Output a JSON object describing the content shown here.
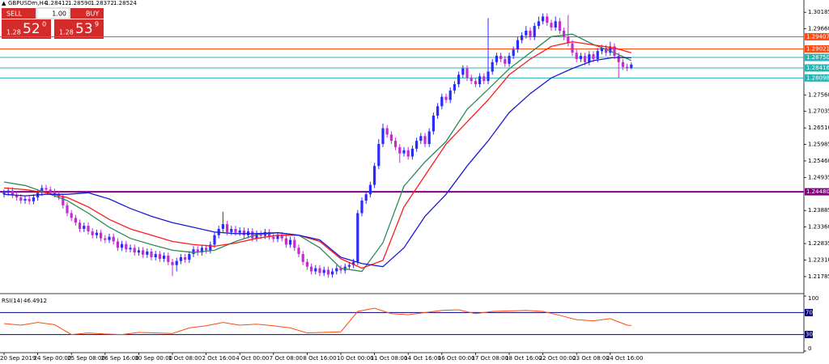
{
  "header": {
    "symbol": "GBPUSDm,H4",
    "ohlc_labels": [
      "1.28412",
      "1.28590",
      "1.28372",
      "1.28524"
    ]
  },
  "trade_panel": {
    "sell": "SELL",
    "buy": "BUY",
    "lot": "1.00",
    "sell_price": [
      "1.28",
      "52",
      "0"
    ],
    "buy_price": [
      "1.28",
      "53",
      "9"
    ]
  },
  "chart_data": {
    "type": "candlestick",
    "up_color": "#2b2bff",
    "down_color": "#c42bd0",
    "ylim": [
      1.2132,
      1.3037
    ],
    "yticks": [
      1.30185,
      {
        "value": 1.2966,
        "label": "1.29660"
      },
      {
        "value": 1.2756,
        "label": "1.27560"
      },
      1.27035,
      {
        "value": 1.2651,
        "label": "1.26510"
      },
      1.25985,
      {
        "value": 1.2546,
        "label": "1.25460"
      },
      1.24935,
      1.23885,
      {
        "value": 1.2336,
        "label": "1.23360"
      },
      1.22835,
      {
        "value": 1.2231,
        "label": "1.22310"
      },
      1.21785
    ],
    "x_labels": [
      {
        "index": 0,
        "label": "20 Sep 2019"
      },
      {
        "index": 8,
        "label": "24 Sep 00:00"
      },
      {
        "index": 16,
        "label": "25 Sep 08:00"
      },
      {
        "index": 24,
        "label": "26 Sep 16:00"
      },
      {
        "index": 32,
        "label": "30 Sep 00:00"
      },
      {
        "index": 40,
        "label": "1 Oct 08:00"
      },
      {
        "index": 48,
        "label": "2 Oct 16:00"
      },
      {
        "index": 56,
        "label": "4 Oct 00:00"
      },
      {
        "index": 64,
        "label": "7 Oct 08:00"
      },
      {
        "index": 72,
        "label": "8 Oct 16:00"
      },
      {
        "index": 80,
        "label": "10 Oct 00:00"
      },
      {
        "index": 88,
        "label": "11 Oct 08:00"
      },
      {
        "index": 96,
        "label": "14 Oct 16:00"
      },
      {
        "index": 104,
        "label": "16 Oct 00:00"
      },
      {
        "index": 112,
        "label": "17 Oct 08:00"
      },
      {
        "index": 120,
        "label": "18 Oct 16:00"
      },
      {
        "index": 128,
        "label": "22 Oct 00:00"
      },
      {
        "index": 136,
        "label": "23 Oct 08:00"
      },
      {
        "index": 144,
        "label": "24 Oct 16:00"
      }
    ],
    "open": [
      1.244,
      1.2445,
      1.2452,
      1.2438,
      1.243,
      1.242,
      1.2425,
      1.2418,
      1.243,
      1.2445,
      1.246,
      1.2455,
      1.2448,
      1.244,
      1.2432,
      1.2405,
      1.238,
      1.2365,
      1.235,
      1.233,
      1.234,
      1.2322,
      1.231,
      1.2318,
      1.23,
      1.2295,
      1.2305,
      1.229,
      1.227,
      1.2282,
      1.2265,
      1.227,
      1.2255,
      1.2262,
      1.2248,
      1.2258,
      1.224,
      1.225,
      1.2235,
      1.2245,
      1.2225,
      1.2215,
      1.2228,
      1.224,
      1.2232,
      1.225,
      1.2265,
      1.2255,
      1.227,
      1.2262,
      1.228,
      1.231,
      1.233,
      1.2345,
      1.232,
      1.233,
      1.2318,
      1.2325,
      1.231,
      1.2322,
      1.23,
      1.2315,
      1.2308,
      1.232,
      1.2305,
      1.2298,
      1.231,
      1.23,
      1.228,
      1.2295,
      1.227,
      1.225,
      1.2225,
      1.221,
      1.2195,
      1.2205,
      1.219,
      1.22,
      1.2185,
      1.2195,
      1.2205,
      1.2198,
      1.221,
      1.2215,
      1.2225,
      1.238,
      1.242,
      1.244,
      1.247,
      1.253,
      1.26,
      1.265,
      1.263,
      1.261,
      1.259,
      1.257,
      1.258,
      1.256,
      1.2585,
      1.261,
      1.2625,
      1.26,
      1.264,
      1.269,
      1.272,
      1.275,
      1.274,
      1.277,
      1.279,
      1.282,
      1.284,
      1.281,
      1.28,
      1.279,
      1.2815,
      1.28,
      1.283,
      1.286,
      1.288,
      1.287,
      1.2855,
      1.288,
      1.29,
      1.293,
      1.2945,
      1.296,
      1.294,
      1.2975,
      1.299,
      1.3005,
      1.2985,
      1.297,
      1.299,
      1.296,
      1.294,
      1.292,
      1.289,
      1.287,
      1.288,
      1.286,
      1.2885,
      1.287,
      1.2895,
      1.2905,
      1.289,
      1.291,
      1.288,
      1.286,
      1.2845,
      1.28412
    ],
    "high": [
      1.2455,
      1.2462,
      1.2462,
      1.2448,
      1.244,
      1.2435,
      1.2435,
      1.244,
      1.2455,
      1.247,
      1.247,
      1.2465,
      1.2458,
      1.245,
      1.2442,
      1.2415,
      1.239,
      1.2375,
      1.236,
      1.235,
      1.235,
      1.2332,
      1.2328,
      1.2328,
      1.231,
      1.2315,
      1.2315,
      1.23,
      1.2292,
      1.2292,
      1.228,
      1.228,
      1.2272,
      1.2272,
      1.2268,
      1.2268,
      1.226,
      1.226,
      1.2255,
      1.2255,
      1.2235,
      1.2238,
      1.225,
      1.225,
      1.226,
      1.2275,
      1.2275,
      1.228,
      1.228,
      1.229,
      1.232,
      1.234,
      1.2385,
      1.2355,
      1.234,
      1.234,
      1.2335,
      1.2335,
      1.2332,
      1.2332,
      1.2325,
      1.2325,
      1.233,
      1.233,
      1.2315,
      1.232,
      1.232,
      1.231,
      1.2305,
      1.2305,
      1.228,
      1.226,
      1.2235,
      1.222,
      1.2215,
      1.2215,
      1.221,
      1.221,
      1.2205,
      1.2215,
      1.2215,
      1.222,
      1.2225,
      1.2235,
      1.239,
      1.243,
      1.245,
      1.248,
      1.254,
      1.2615,
      1.2665,
      1.266,
      1.264,
      1.262,
      1.26,
      1.259,
      1.259,
      1.2595,
      1.262,
      1.2635,
      1.2635,
      1.265,
      1.27,
      1.273,
      1.276,
      1.276,
      1.278,
      1.28,
      1.283,
      1.285,
      1.285,
      1.282,
      1.281,
      1.2825,
      1.2825,
      1.3,
      1.287,
      1.289,
      1.289,
      1.288,
      1.289,
      1.291,
      1.294,
      1.2955,
      1.2975,
      1.297,
      1.2985,
      1.3005,
      1.3015,
      1.3015,
      1.2995,
      1.3005,
      1.3,
      1.297,
      1.301,
      1.293,
      1.29,
      1.289,
      1.289,
      1.2895,
      1.2895,
      1.2905,
      1.2915,
      1.2915,
      1.2925,
      1.292,
      1.289,
      1.287,
      1.2855,
      1.2859
    ],
    "low": [
      1.243,
      1.2435,
      1.2428,
      1.242,
      1.241,
      1.241,
      1.2408,
      1.2408,
      1.242,
      1.2435,
      1.2445,
      1.2438,
      1.243,
      1.2422,
      1.2395,
      1.237,
      1.2355,
      1.234,
      1.232,
      1.232,
      1.2312,
      1.23,
      1.23,
      1.229,
      1.2285,
      1.2285,
      1.228,
      1.226,
      1.226,
      1.2255,
      1.2255,
      1.2245,
      1.2245,
      1.2238,
      1.2238,
      1.223,
      1.223,
      1.2225,
      1.2225,
      1.2215,
      1.218,
      1.2195,
      1.2218,
      1.2222,
      1.2222,
      1.224,
      1.2245,
      1.2245,
      1.2252,
      1.2252,
      1.227,
      1.23,
      1.232,
      1.231,
      1.231,
      1.2308,
      1.2308,
      1.23,
      1.23,
      1.229,
      1.229,
      1.2298,
      1.2298,
      1.2295,
      1.2288,
      1.2288,
      1.229,
      1.227,
      1.227,
      1.226,
      1.224,
      1.2215,
      1.22,
      1.2185,
      1.2185,
      1.218,
      1.218,
      1.2175,
      1.2175,
      1.2185,
      1.2188,
      1.2188,
      1.22,
      1.2205,
      1.2215,
      1.237,
      1.241,
      1.243,
      1.246,
      1.252,
      1.259,
      1.262,
      1.26,
      1.258,
      1.254,
      1.256,
      1.255,
      1.255,
      1.2575,
      1.26,
      1.259,
      1.259,
      1.263,
      1.268,
      1.271,
      1.273,
      1.273,
      1.276,
      1.278,
      1.281,
      1.28,
      1.279,
      1.278,
      1.278,
      1.279,
      1.279,
      1.282,
      1.285,
      1.286,
      1.2845,
      1.2845,
      1.287,
      1.289,
      1.292,
      1.2935,
      1.293,
      1.293,
      1.2965,
      1.298,
      1.2975,
      1.296,
      1.296,
      1.295,
      1.293,
      1.291,
      1.288,
      1.286,
      1.286,
      1.285,
      1.285,
      1.286,
      1.286,
      1.2885,
      1.288,
      1.288,
      1.287,
      1.281,
      1.2835,
      1.2831,
      1.28372
    ],
    "close": [
      1.2445,
      1.2452,
      1.2438,
      1.243,
      1.242,
      1.2425,
      1.2418,
      1.243,
      1.2445,
      1.246,
      1.2455,
      1.2448,
      1.244,
      1.2432,
      1.2405,
      1.238,
      1.2365,
      1.235,
      1.233,
      1.234,
      1.2322,
      1.231,
      1.2318,
      1.23,
      1.2295,
      1.2305,
      1.229,
      1.227,
      1.2282,
      1.2265,
      1.227,
      1.2255,
      1.2262,
      1.2248,
      1.2258,
      1.224,
      1.225,
      1.2235,
      1.2245,
      1.2225,
      1.2215,
      1.2228,
      1.224,
      1.2232,
      1.225,
      1.2265,
      1.2255,
      1.227,
      1.2262,
      1.228,
      1.231,
      1.233,
      1.2345,
      1.232,
      1.233,
      1.2318,
      1.2325,
      1.231,
      1.2322,
      1.23,
      1.2315,
      1.2308,
      1.232,
      1.2305,
      1.2298,
      1.231,
      1.23,
      1.228,
      1.2295,
      1.227,
      1.225,
      1.2225,
      1.221,
      1.2195,
      1.2205,
      1.219,
      1.22,
      1.2185,
      1.2195,
      1.2205,
      1.2198,
      1.221,
      1.2215,
      1.2225,
      1.238,
      1.242,
      1.244,
      1.247,
      1.253,
      1.26,
      1.265,
      1.263,
      1.261,
      1.259,
      1.257,
      1.258,
      1.256,
      1.2585,
      1.261,
      1.2625,
      1.26,
      1.264,
      1.269,
      1.272,
      1.275,
      1.274,
      1.277,
      1.279,
      1.282,
      1.284,
      1.281,
      1.28,
      1.279,
      1.2815,
      1.28,
      1.283,
      1.286,
      1.288,
      1.287,
      1.2855,
      1.288,
      1.29,
      1.293,
      1.2945,
      1.296,
      1.294,
      1.2975,
      1.299,
      1.3005,
      1.2985,
      1.297,
      1.299,
      1.296,
      1.294,
      1.292,
      1.289,
      1.287,
      1.288,
      1.286,
      1.2885,
      1.287,
      1.2895,
      1.2905,
      1.289,
      1.291,
      1.288,
      1.286,
      1.2845,
      1.28412,
      1.28524
    ],
    "moving_averages": [
      {
        "color": "#2e8b57",
        "x": [
          0,
          5,
          10,
          15,
          20,
          25,
          30,
          35,
          40,
          45,
          50,
          55,
          60,
          65,
          70,
          75,
          80,
          85,
          90,
          95,
          100,
          105,
          110,
          115,
          120,
          125,
          130,
          135,
          140,
          145,
          149
        ],
        "values": [
          1.2479,
          1.2468,
          1.2445,
          1.242,
          1.238,
          1.2335,
          1.23,
          1.228,
          1.2262,
          1.2255,
          1.2262,
          1.229,
          1.2312,
          1.2318,
          1.231,
          1.227,
          1.2205,
          1.2195,
          1.2286,
          1.2466,
          1.2543,
          1.2608,
          1.271,
          1.2774,
          1.2839,
          1.289,
          1.2941,
          1.2949,
          1.2916,
          1.289,
          1.2865
        ]
      },
      {
        "color": "#ff1a1a",
        "x": [
          0,
          5,
          10,
          15,
          20,
          25,
          30,
          35,
          40,
          45,
          50,
          55,
          60,
          65,
          70,
          75,
          80,
          85,
          90,
          95,
          100,
          105,
          110,
          115,
          120,
          125,
          130,
          135,
          140,
          145,
          149
        ],
        "values": [
          1.246,
          1.2455,
          1.2445,
          1.243,
          1.24,
          1.236,
          1.233,
          1.231,
          1.229,
          1.228,
          1.2275,
          1.2285,
          1.23,
          1.231,
          1.231,
          1.229,
          1.2235,
          1.2205,
          1.223,
          1.24,
          1.25,
          1.26,
          1.267,
          1.274,
          1.282,
          1.287,
          1.291,
          1.2925,
          1.2915,
          1.2905,
          1.289
        ]
      },
      {
        "color": "#1a1ad6",
        "x": [
          0,
          5,
          10,
          15,
          20,
          25,
          30,
          35,
          40,
          45,
          50,
          55,
          60,
          65,
          70,
          75,
          80,
          85,
          90,
          95,
          100,
          105,
          110,
          115,
          120,
          125,
          130,
          135,
          140,
          145,
          149
        ],
        "values": [
          1.244,
          1.2435,
          1.244,
          1.244,
          1.2445,
          1.2425,
          1.2395,
          1.237,
          1.235,
          1.2335,
          1.232,
          1.2315,
          1.2315,
          1.2318,
          1.231,
          1.2295,
          1.224,
          1.222,
          1.221,
          1.227,
          1.237,
          1.244,
          1.253,
          1.261,
          1.27,
          1.276,
          1.281,
          1.284,
          1.2865,
          1.2875,
          1.2874
        ]
      }
    ],
    "levels": [
      {
        "value": 1.29407,
        "color": "#ff4a12"
      },
      {
        "value": 1.29021,
        "color": "#ff4a12"
      },
      {
        "value": 1.2875,
        "label": "1.28750",
        "color": "#26b3b3"
      },
      {
        "value": 1.28416,
        "color": "#26b3b3"
      },
      {
        "value": 1.28098,
        "color": "#26b3b3"
      },
      {
        "value": 1.2448,
        "label": "1.24480",
        "color": "#800080"
      }
    ],
    "rsi": {
      "label": "RSI(14)",
      "color": "#ff4a12",
      "level_color": "#000080",
      "ylim": [
        0,
        100
      ],
      "yticks": [
        0,
        100
      ],
      "levels": [
        30,
        70
      ],
      "x": [
        0,
        4,
        8,
        12,
        16,
        20,
        24,
        28,
        32,
        36,
        40,
        44,
        48,
        52,
        56,
        60,
        64,
        68,
        72,
        76,
        80,
        84,
        88,
        92,
        96,
        100,
        104,
        108,
        112,
        116,
        120,
        124,
        128,
        132,
        136,
        140,
        144,
        148,
        149
      ],
      "values": [
        50,
        47,
        52,
        48,
        30,
        33,
        31,
        30,
        34,
        33,
        32,
        42,
        46,
        52,
        47,
        49,
        46,
        42,
        33,
        34,
        35,
        72,
        78,
        68,
        66,
        70,
        74,
        75,
        68,
        72,
        73,
        74,
        72,
        65,
        57,
        55,
        59,
        47,
        46.4912
      ]
    }
  }
}
